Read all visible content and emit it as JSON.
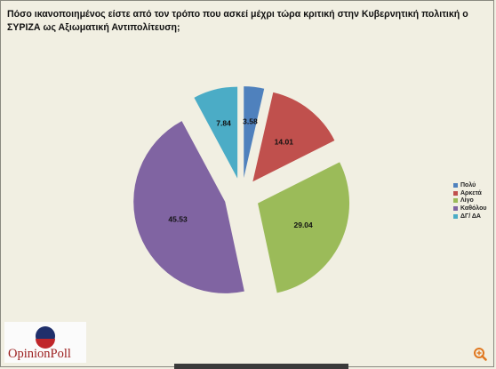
{
  "title": "Πόσο ικανοποιημένος είστε από τον τρόπο που ασκεί μέχρι τώρα κριτική στην Κυβερνητική πολιτική ο ΣΥΡΙΖΑ ως Αξιωματική Αντιπολίτευση;",
  "chart_data": {
    "type": "pie",
    "title": "Πόσο ικανοποιημένος είστε από τον τρόπο που ασκεί μέχρι τώρα κριτική στην Κυβερνητική πολιτική ο ΣΥΡΙΖΑ ως Αξιωματική Αντιπολίτευση;",
    "exploded": true,
    "legend_position": "right",
    "slices": [
      {
        "label": "Πολύ",
        "value": 3.58,
        "color": "#4f81bd"
      },
      {
        "label": "Αρκετά",
        "value": 14.01,
        "color": "#c0504d"
      },
      {
        "label": "Λίγο",
        "value": 29.04,
        "color": "#9bbb59"
      },
      {
        "label": "Καθόλου",
        "value": 45.53,
        "color": "#8064a2"
      },
      {
        "label": "ΔΓ/ ΔΑ",
        "value": 7.84,
        "color": "#4bacc6"
      }
    ]
  },
  "logo": {
    "text": "OpinionPoll"
  },
  "icons": {
    "zoom": "zoom-in-icon"
  }
}
